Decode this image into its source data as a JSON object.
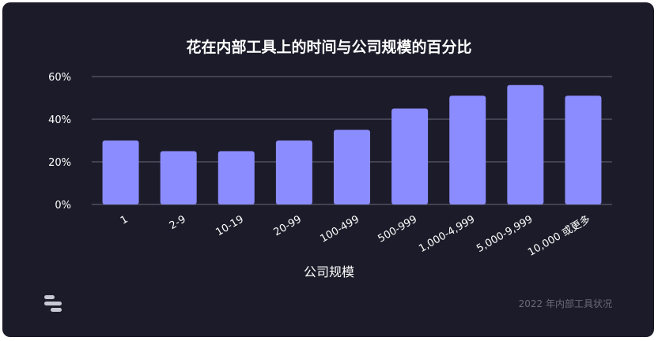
{
  "chart_data": {
    "type": "bar",
    "title": "花在内部工具上的时间与公司规模的百分比",
    "xlabel": "公司规模",
    "ylabel": "",
    "categories": [
      "1",
      "2-9",
      "10-19",
      "20-99",
      "100-499",
      "500-999",
      "1,000-4,999",
      "5,000-9,999",
      "10,000 或更多"
    ],
    "values": [
      30,
      25,
      25,
      30,
      35,
      45,
      51,
      56,
      51
    ],
    "ylim": [
      0,
      60
    ],
    "yticks": [
      "0%",
      "20%",
      "40%",
      "60%"
    ],
    "ytick_values": [
      0,
      20,
      40,
      60
    ],
    "grid": true,
    "colors": {
      "bar": "#8b8cff",
      "background": "#1c1b29",
      "grid": "#6a6a7c",
      "text": "#ffffff",
      "muted": "#6b6a7a"
    }
  },
  "footer": {
    "source": "2022 年内部工具状况"
  },
  "logo": {
    "icon": "brand-logo-icon"
  }
}
